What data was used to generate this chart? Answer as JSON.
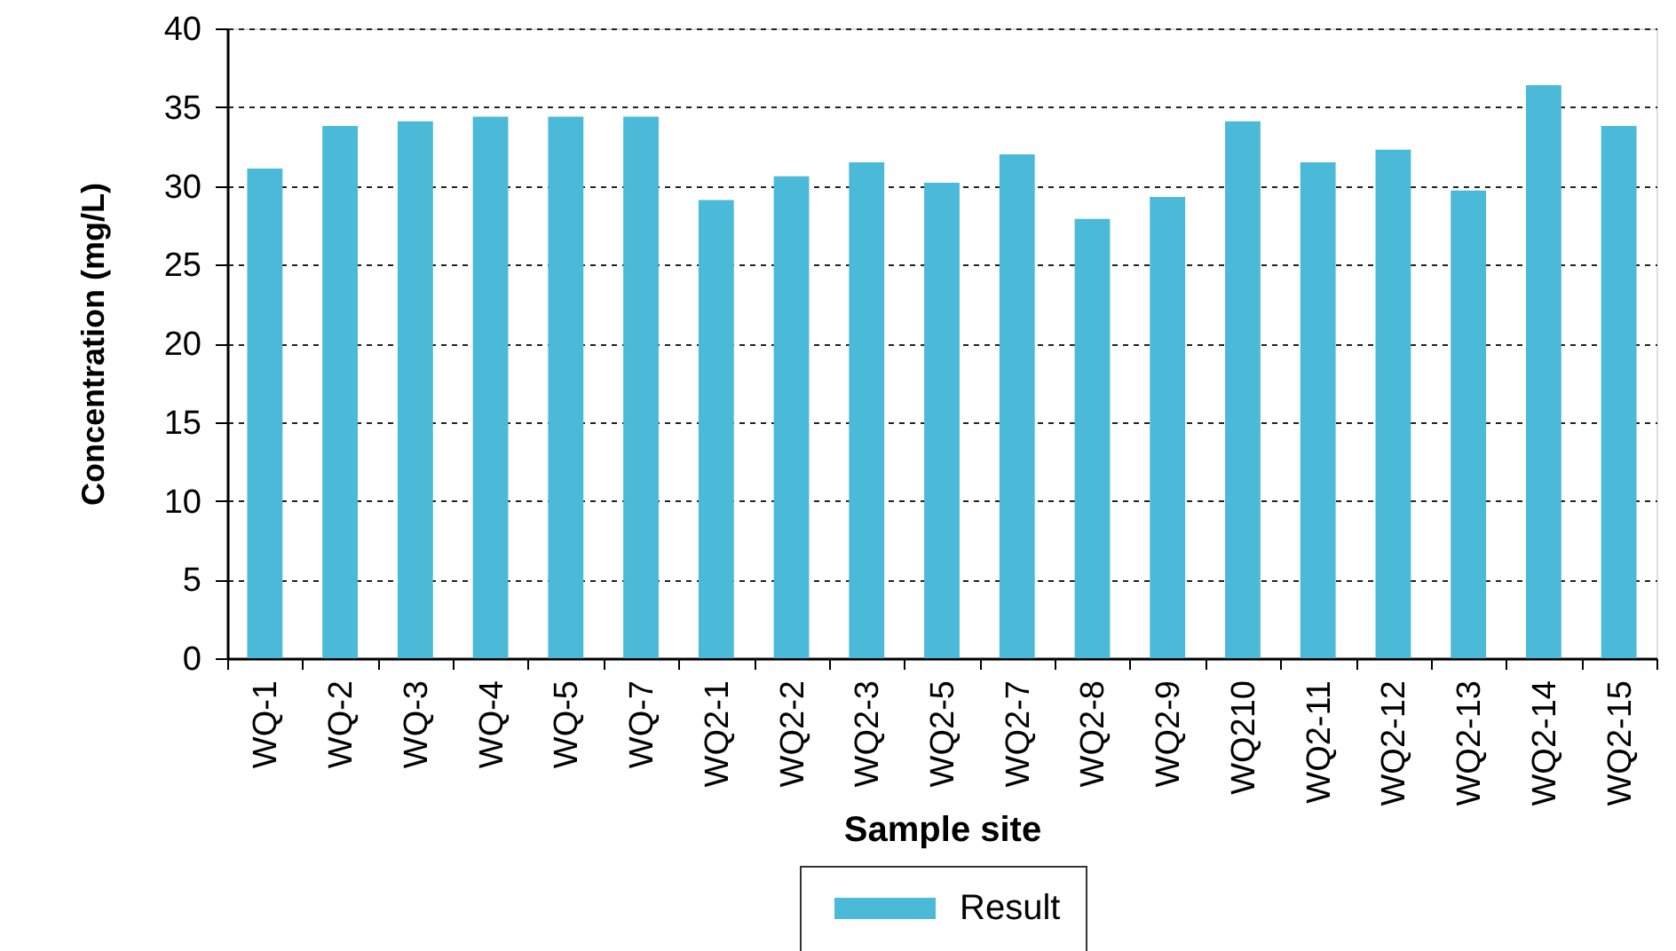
{
  "chart_data": {
    "type": "bar",
    "xlabel": "Sample site",
    "ylabel": "Concentration (mg/L)",
    "categories": [
      "WQ-1",
      "WQ-2",
      "WQ-3",
      "WQ-4",
      "WQ-5",
      "WQ-7",
      "WQ2-1",
      "WQ2-2",
      "WQ2-3",
      "WQ2-5",
      "WQ2-7",
      "WQ2-8",
      "WQ2-9",
      "WQ210",
      "WQ2-11",
      "WQ2-12",
      "WQ2-13",
      "WQ2-14",
      "WQ2-15"
    ],
    "series": [
      {
        "name": "Result",
        "color": "#4bb9d8",
        "values": [
          31.1,
          33.8,
          34.1,
          34.4,
          34.4,
          34.4,
          29.1,
          30.6,
          31.5,
          30.2,
          32.0,
          27.9,
          29.3,
          34.1,
          31.5,
          32.3,
          29.7,
          36.4,
          33.8
        ]
      }
    ],
    "ylim": [
      0,
      40
    ],
    "yticks": [
      0,
      5,
      10,
      15,
      20,
      25,
      30,
      35,
      40
    ],
    "grid": "y",
    "legend": "bottom"
  }
}
